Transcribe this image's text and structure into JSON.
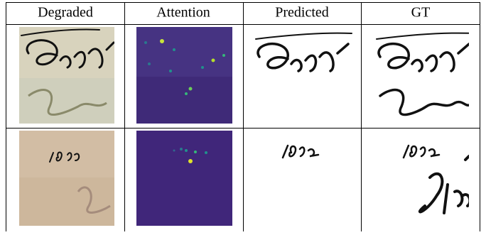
{
  "table": {
    "header": [
      "Degraded",
      "Attention",
      "Predicted",
      "GT"
    ]
  }
}
